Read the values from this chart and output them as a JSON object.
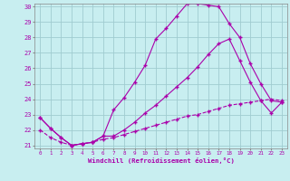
{
  "xlabel": "Windchill (Refroidissement éolien,°C)",
  "bg_color": "#c8eef0",
  "grid_color": "#a0ccd0",
  "line_color": "#aa00aa",
  "xmin": 0,
  "xmax": 23,
  "ymin": 21,
  "ymax": 30,
  "line1_x": [
    0,
    1,
    2,
    3,
    4,
    5,
    6,
    7,
    8,
    9,
    10,
    11,
    12,
    13,
    14,
    15,
    16,
    17,
    18,
    19,
    20,
    21,
    22,
    23
  ],
  "line1_y": [
    22.8,
    22.1,
    21.5,
    21.0,
    21.1,
    21.2,
    21.6,
    23.3,
    24.1,
    25.1,
    26.2,
    27.9,
    28.6,
    29.4,
    30.2,
    30.2,
    30.1,
    30.0,
    28.9,
    28.0,
    26.3,
    25.0,
    23.9,
    23.8
  ],
  "line2_x": [
    0,
    1,
    2,
    3,
    4,
    5,
    6,
    7,
    8,
    9,
    10,
    11,
    12,
    13,
    14,
    15,
    16,
    17,
    18,
    19,
    20,
    21,
    22,
    23
  ],
  "line2_y": [
    22.8,
    22.1,
    21.5,
    21.0,
    21.1,
    21.2,
    21.6,
    21.6,
    22.0,
    22.5,
    23.1,
    23.6,
    24.2,
    24.8,
    25.4,
    26.1,
    26.9,
    27.6,
    27.9,
    26.5,
    25.1,
    23.9,
    23.1,
    23.8
  ],
  "line3_x": [
    0,
    1,
    2,
    3,
    4,
    5,
    6,
    7,
    8,
    9,
    10,
    11,
    12,
    13,
    14,
    15,
    16,
    17,
    18,
    19,
    20,
    21,
    22,
    23
  ],
  "line3_y": [
    22.0,
    21.5,
    21.2,
    21.0,
    21.1,
    21.2,
    21.4,
    21.5,
    21.7,
    21.9,
    22.1,
    22.3,
    22.5,
    22.7,
    22.9,
    23.0,
    23.2,
    23.4,
    23.6,
    23.7,
    23.8,
    23.9,
    24.0,
    23.9
  ]
}
